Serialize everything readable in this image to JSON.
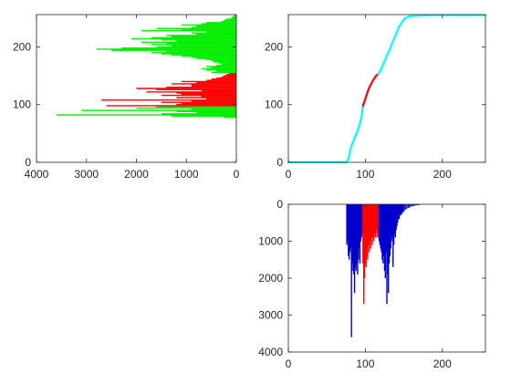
{
  "chart_data": [
    {
      "id": "left",
      "type": "bar",
      "orientation": "horizontal",
      "title": "",
      "xlabel": "",
      "ylabel": "",
      "xlim": [
        4000,
        0
      ],
      "ylim": [
        0,
        256
      ],
      "x_reversed": true,
      "xticks": [
        4000,
        3000,
        2000,
        1000,
        0
      ],
      "yticks": [
        0,
        100,
        200
      ],
      "highlight_range": [
        97,
        155
      ],
      "colors": {
        "base": "#00ee00",
        "highlight": "#ff0000"
      },
      "histogram": [
        [
          78,
          250
        ],
        [
          80,
          1300
        ],
        [
          81,
          900
        ],
        [
          82,
          3600
        ],
        [
          84,
          1500
        ],
        [
          86,
          800
        ],
        [
          88,
          1200
        ],
        [
          90,
          3100
        ],
        [
          92,
          900
        ],
        [
          94,
          2000
        ],
        [
          96,
          1600
        ],
        [
          98,
          2600
        ],
        [
          100,
          1200
        ],
        [
          102,
          1100
        ],
        [
          104,
          1500
        ],
        [
          106,
          900
        ],
        [
          108,
          2700
        ],
        [
          110,
          600
        ],
        [
          112,
          1200
        ],
        [
          114,
          700
        ],
        [
          116,
          1500
        ],
        [
          118,
          1100
        ],
        [
          120,
          1200
        ],
        [
          122,
          1800
        ],
        [
          124,
          700
        ],
        [
          126,
          1600
        ],
        [
          128,
          2000
        ],
        [
          130,
          1400
        ],
        [
          132,
          900
        ],
        [
          134,
          900
        ],
        [
          136,
          1300
        ],
        [
          138,
          800
        ],
        [
          140,
          1100
        ],
        [
          142,
          600
        ],
        [
          144,
          500
        ],
        [
          146,
          400
        ],
        [
          148,
          300
        ],
        [
          150,
          250
        ],
        [
          152,
          200
        ],
        [
          154,
          150
        ],
        [
          156,
          500
        ],
        [
          158,
          400
        ],
        [
          160,
          600
        ],
        [
          162,
          700
        ],
        [
          164,
          500
        ],
        [
          166,
          600
        ],
        [
          168,
          400
        ],
        [
          170,
          300
        ],
        [
          172,
          350
        ],
        [
          174,
          450
        ],
        [
          176,
          500
        ],
        [
          178,
          600
        ],
        [
          180,
          800
        ],
        [
          182,
          900
        ],
        [
          184,
          1100
        ],
        [
          186,
          1300
        ],
        [
          188,
          1500
        ],
        [
          190,
          1700
        ],
        [
          192,
          1400
        ],
        [
          194,
          2500
        ],
        [
          196,
          2800
        ],
        [
          198,
          2300
        ],
        [
          200,
          1600
        ],
        [
          202,
          1300
        ],
        [
          204,
          1700
        ],
        [
          206,
          1400
        ],
        [
          208,
          1900
        ],
        [
          210,
          1200
        ],
        [
          212,
          1500
        ],
        [
          214,
          2100
        ],
        [
          216,
          1700
        ],
        [
          218,
          1300
        ],
        [
          220,
          1400
        ],
        [
          222,
          800
        ],
        [
          224,
          900
        ],
        [
          226,
          600
        ],
        [
          228,
          1900
        ],
        [
          230,
          1100
        ],
        [
          232,
          1600
        ],
        [
          234,
          900
        ],
        [
          236,
          800
        ],
        [
          238,
          1100
        ],
        [
          240,
          700
        ],
        [
          242,
          600
        ],
        [
          244,
          300
        ],
        [
          246,
          250
        ],
        [
          248,
          200
        ],
        [
          250,
          100
        ],
        [
          252,
          80
        ],
        [
          254,
          50
        ]
      ]
    },
    {
      "id": "top-right",
      "type": "line",
      "title": "",
      "xlabel": "",
      "ylabel": "",
      "xlim": [
        0,
        256
      ],
      "ylim": [
        0,
        256
      ],
      "xticks": [
        0,
        100,
        200
      ],
      "yticks": [
        0,
        100,
        200
      ],
      "highlight_range": [
        97,
        117
      ],
      "colors": {
        "base": "#00ffff",
        "highlight": "#ff0000"
      },
      "curve": [
        [
          0,
          0
        ],
        [
          75,
          0
        ],
        [
          78,
          5
        ],
        [
          80,
          18
        ],
        [
          82,
          28
        ],
        [
          84,
          35
        ],
        [
          86,
          42
        ],
        [
          88,
          48
        ],
        [
          90,
          55
        ],
        [
          92,
          62
        ],
        [
          95,
          78
        ],
        [
          97,
          98
        ],
        [
          100,
          110
        ],
        [
          103,
          122
        ],
        [
          106,
          132
        ],
        [
          110,
          142
        ],
        [
          114,
          150
        ],
        [
          117,
          153
        ],
        [
          120,
          160
        ],
        [
          124,
          172
        ],
        [
          128,
          185
        ],
        [
          132,
          196
        ],
        [
          136,
          210
        ],
        [
          140,
          222
        ],
        [
          144,
          235
        ],
        [
          148,
          244
        ],
        [
          152,
          250
        ],
        [
          158,
          253
        ],
        [
          165,
          254
        ],
        [
          180,
          255
        ],
        [
          200,
          255
        ],
        [
          230,
          255
        ],
        [
          256,
          255
        ]
      ]
    },
    {
      "id": "bottom-right",
      "type": "bar",
      "orientation": "vertical",
      "title": "",
      "xlabel": "",
      "ylabel": "",
      "xlim": [
        0,
        256
      ],
      "ylim": [
        4000,
        0
      ],
      "y_reversed": true,
      "xticks": [
        0,
        100,
        200
      ],
      "yticks": [
        0,
        1000,
        2000,
        3000,
        4000
      ],
      "highlight_range": [
        97,
        117
      ],
      "colors": {
        "base": "#0000cc",
        "highlight": "#ff0000"
      },
      "histogram": [
        [
          76,
          1100
        ],
        [
          77,
          1000
        ],
        [
          78,
          1400
        ],
        [
          79,
          1500
        ],
        [
          80,
          1300
        ],
        [
          81,
          1200
        ],
        [
          82,
          3600
        ],
        [
          83,
          1800
        ],
        [
          84,
          1600
        ],
        [
          85,
          1900
        ],
        [
          86,
          2400
        ],
        [
          87,
          1700
        ],
        [
          88,
          1800
        ],
        [
          89,
          1600
        ],
        [
          90,
          1900
        ],
        [
          91,
          1500
        ],
        [
          92,
          1200
        ],
        [
          93,
          1600
        ],
        [
          94,
          1000
        ],
        [
          95,
          900
        ],
        [
          96,
          800
        ],
        [
          97,
          1600
        ],
        [
          98,
          2700
        ],
        [
          99,
          2000
        ],
        [
          100,
          1600
        ],
        [
          101,
          1700
        ],
        [
          102,
          1400
        ],
        [
          103,
          1500
        ],
        [
          104,
          1100
        ],
        [
          105,
          1300
        ],
        [
          106,
          1000
        ],
        [
          107,
          1200
        ],
        [
          108,
          900
        ],
        [
          109,
          1100
        ],
        [
          110,
          900
        ],
        [
          111,
          1000
        ],
        [
          112,
          800
        ],
        [
          113,
          900
        ],
        [
          114,
          700
        ],
        [
          115,
          900
        ],
        [
          116,
          800
        ],
        [
          117,
          900
        ],
        [
          118,
          1000
        ],
        [
          119,
          1100
        ],
        [
          120,
          1200
        ],
        [
          121,
          1300
        ],
        [
          122,
          1500
        ],
        [
          123,
          1600
        ],
        [
          124,
          1400
        ],
        [
          125,
          1800
        ],
        [
          126,
          2000
        ],
        [
          127,
          1300
        ],
        [
          128,
          2700
        ],
        [
          129,
          1900
        ],
        [
          130,
          2400
        ],
        [
          131,
          1600
        ],
        [
          132,
          1400
        ],
        [
          133,
          1200
        ],
        [
          134,
          1000
        ],
        [
          135,
          900
        ],
        [
          136,
          1700
        ],
        [
          137,
          1100
        ],
        [
          138,
          800
        ],
        [
          139,
          900
        ],
        [
          140,
          700
        ],
        [
          141,
          600
        ],
        [
          142,
          500
        ],
        [
          143,
          400
        ],
        [
          144,
          400
        ],
        [
          145,
          300
        ],
        [
          146,
          300
        ],
        [
          147,
          250
        ],
        [
          148,
          250
        ],
        [
          149,
          200
        ],
        [
          150,
          200
        ],
        [
          152,
          150
        ],
        [
          154,
          120
        ],
        [
          156,
          100
        ],
        [
          158,
          80
        ],
        [
          160,
          60
        ],
        [
          162,
          50
        ],
        [
          164,
          40
        ],
        [
          166,
          30
        ],
        [
          168,
          25
        ],
        [
          170,
          20
        ]
      ]
    }
  ]
}
